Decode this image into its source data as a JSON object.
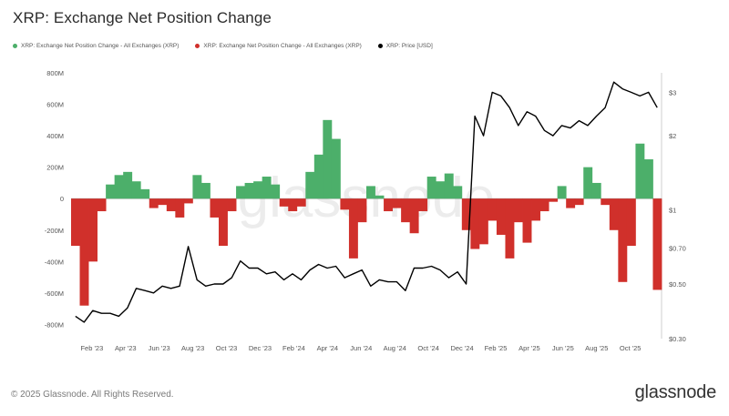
{
  "chart_data": {
    "type": "area",
    "title": "XRP: Exchange Net Position Change",
    "watermark": "glassnode",
    "legend": [
      {
        "label": "XRP: Exchange Net Position Change - All Exchanges (XRP)",
        "color": "#4caf6a"
      },
      {
        "label": "XRP: Exchange Net Position Change - All Exchanges (XRP)",
        "color": "#d0302b"
      },
      {
        "label": "XRP: Price [USD]",
        "color": "#000000"
      }
    ],
    "x_tick_labels": [
      "Feb '23",
      "Apr '23",
      "Jun '23",
      "Aug '23",
      "Oct '23",
      "Dec '23",
      "Feb '24",
      "Apr '24",
      "Jun '24",
      "Aug '24",
      "Oct '24",
      "Dec '24",
      "Feb '25",
      "Apr '25",
      "Jun '25",
      "Aug '25",
      "Oct '25"
    ],
    "y_left": {
      "ticks": [
        800,
        600,
        400,
        200,
        0,
        -200,
        -400,
        -600,
        -800
      ],
      "labels": [
        "800M",
        "600M",
        "400M",
        "200M",
        "0",
        "-200M",
        "-400M",
        "-600M",
        "-800M"
      ],
      "range": [
        -890,
        800
      ]
    },
    "y_right": {
      "scale": "log",
      "ticks": [
        3,
        2,
        1,
        0.7,
        0.5,
        0.3
      ],
      "labels": [
        "$3",
        "$2",
        "$1",
        "$0.70",
        "$0.50",
        "$0.30"
      ],
      "range": [
        0.3,
        3.6
      ]
    },
    "x_range": [
      0,
      34
    ],
    "series": [
      {
        "name": "Exchange Net Position Change (M XRP)",
        "x": [
          0,
          0.5,
          1,
          1.5,
          2,
          2.5,
          3,
          3.5,
          4,
          4.5,
          5,
          5.5,
          6,
          6.5,
          7,
          7.5,
          8,
          8.5,
          9,
          9.5,
          10,
          10.5,
          11,
          11.5,
          12,
          12.5,
          13,
          13.5,
          14,
          14.5,
          15,
          15.5,
          16,
          16.5,
          17,
          17.5,
          18,
          18.5,
          19,
          19.5,
          20,
          20.5,
          21,
          21.5,
          22,
          22.5,
          23,
          23.5,
          24,
          24.5,
          25,
          25.5,
          26,
          26.5,
          27,
          27.5,
          28,
          28.5,
          29,
          29.5,
          30,
          30.5,
          31,
          31.5,
          32,
          32.5,
          33,
          33.5
        ],
        "values": [
          -300,
          -680,
          -400,
          -80,
          90,
          150,
          170,
          110,
          60,
          -60,
          -40,
          -80,
          -120,
          -30,
          150,
          100,
          -120,
          -300,
          -80,
          80,
          100,
          110,
          140,
          90,
          -50,
          -80,
          -50,
          170,
          280,
          500,
          380,
          -70,
          -380,
          -150,
          80,
          20,
          -80,
          -60,
          -150,
          -220,
          -80,
          140,
          110,
          160,
          80,
          -200,
          -320,
          -290,
          -140,
          -230,
          -380,
          -150,
          -280,
          -140,
          -80,
          -20,
          80,
          -60,
          -40,
          200,
          100,
          -40,
          -200,
          -530,
          -300,
          350,
          250,
          -580
        ]
      },
      {
        "name": "XRP: Price [USD]",
        "x": [
          0,
          0.5,
          1,
          1.5,
          2,
          2.5,
          3,
          3.5,
          4,
          4.5,
          5,
          5.5,
          6,
          6.5,
          7,
          7.5,
          8,
          8.5,
          9,
          9.5,
          10,
          10.5,
          11,
          11.5,
          12,
          12.5,
          13,
          13.5,
          14,
          14.5,
          15,
          15.5,
          16,
          16.5,
          17,
          17.5,
          18,
          18.5,
          19,
          19.5,
          20,
          20.5,
          21,
          21.5,
          22,
          22.5,
          23,
          23.5,
          24,
          24.5,
          25,
          25.5,
          26,
          26.5,
          27,
          27.5,
          28,
          28.5,
          29,
          29.5,
          30,
          30.5,
          31,
          31.5,
          32,
          32.5,
          33,
          33.5
        ],
        "values": [
          0.37,
          0.35,
          0.39,
          0.38,
          0.38,
          0.37,
          0.4,
          0.48,
          0.47,
          0.46,
          0.49,
          0.48,
          0.49,
          0.71,
          0.52,
          0.49,
          0.5,
          0.5,
          0.53,
          0.62,
          0.58,
          0.58,
          0.55,
          0.56,
          0.52,
          0.55,
          0.52,
          0.57,
          0.6,
          0.58,
          0.59,
          0.53,
          0.55,
          0.57,
          0.49,
          0.52,
          0.51,
          0.51,
          0.47,
          0.58,
          0.58,
          0.59,
          0.57,
          0.53,
          0.56,
          0.5,
          2.4,
          2.0,
          3.0,
          2.9,
          2.6,
          2.2,
          2.5,
          2.4,
          2.1,
          2.0,
          2.2,
          2.15,
          2.3,
          2.2,
          2.4,
          2.6,
          3.3,
          3.1,
          3.0,
          2.9,
          3.0,
          2.6
        ]
      }
    ]
  },
  "footer": {
    "copyright": "© 2025 Glassnode. All Rights Reserved.",
    "logo": "glassnode"
  }
}
